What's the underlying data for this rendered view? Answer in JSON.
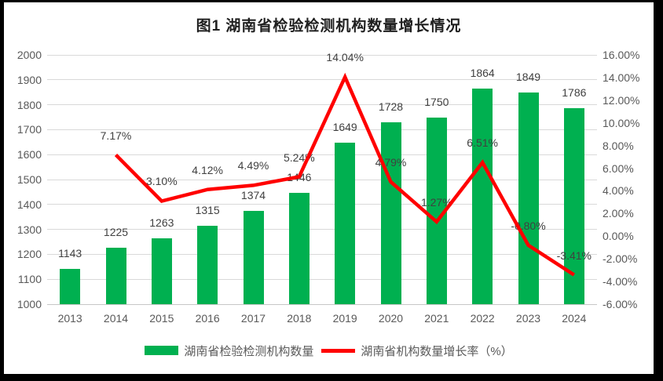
{
  "title": "图1 湖南省检验检测机构数量增长情况",
  "colors": {
    "bar": "#00B050",
    "line": "#FF0000",
    "grid": "#D9D9D9",
    "axis_line": "#C6C6C6",
    "axis_text": "#595959",
    "data_label": "#404040",
    "title_text": "#1F1F1F",
    "background": "#FFFFFF",
    "frame": "#000000"
  },
  "chart_data": {
    "type": "combo",
    "title": "图1 湖南省检验检测机构数量增长情况",
    "categories": [
      "2013",
      "2014",
      "2015",
      "2016",
      "2017",
      "2018",
      "2019",
      "2020",
      "2021",
      "2022",
      "2023",
      "2024"
    ],
    "series": [
      {
        "name": "湖南省检验检测机构数量",
        "type": "bar",
        "color": "#00B050",
        "axis": "left",
        "values": [
          1143,
          1225,
          1263,
          1315,
          1374,
          1446,
          1649,
          1728,
          1750,
          1864,
          1849,
          1786
        ],
        "labels": [
          "1143",
          "1225",
          "1263",
          "1315",
          "1374",
          "1446",
          "1649",
          "1728",
          "1750",
          "1864",
          "1849",
          "1786"
        ]
      },
      {
        "name": "湖南省机构数量增长率（%）",
        "type": "line",
        "color": "#FF0000",
        "axis": "right",
        "values": [
          null,
          7.17,
          3.1,
          4.12,
          4.49,
          5.24,
          14.04,
          4.79,
          1.27,
          6.51,
          -0.8,
          -3.41
        ],
        "labels": [
          "",
          "7.17%",
          "3.10%",
          "4.12%",
          "4.49%",
          "5.24%",
          "14.04%",
          "4.79%",
          "1.27%",
          "6.51%",
          "-0.80%",
          "-3.41%"
        ]
      }
    ],
    "left_axis": {
      "min": 1000,
      "max": 2000,
      "step": 100,
      "tick_labels": [
        "2000",
        "1900",
        "1800",
        "1700",
        "1600",
        "1500",
        "1400",
        "1300",
        "1200",
        "1100",
        "1000"
      ]
    },
    "right_axis": {
      "min": -6,
      "max": 16,
      "step": 2,
      "tick_labels": [
        "16.00%",
        "14.00%",
        "12.00%",
        "10.00%",
        "8.00%",
        "6.00%",
        "4.00%",
        "2.00%",
        "0.00%",
        "-2.00%",
        "-4.00%",
        "-6.00%"
      ]
    },
    "grid": true,
    "legend_position": "bottom"
  },
  "legend": {
    "bar_label": "湖南省检验检测机构数量",
    "line_label": "湖南省机构数量增长率（%）"
  }
}
